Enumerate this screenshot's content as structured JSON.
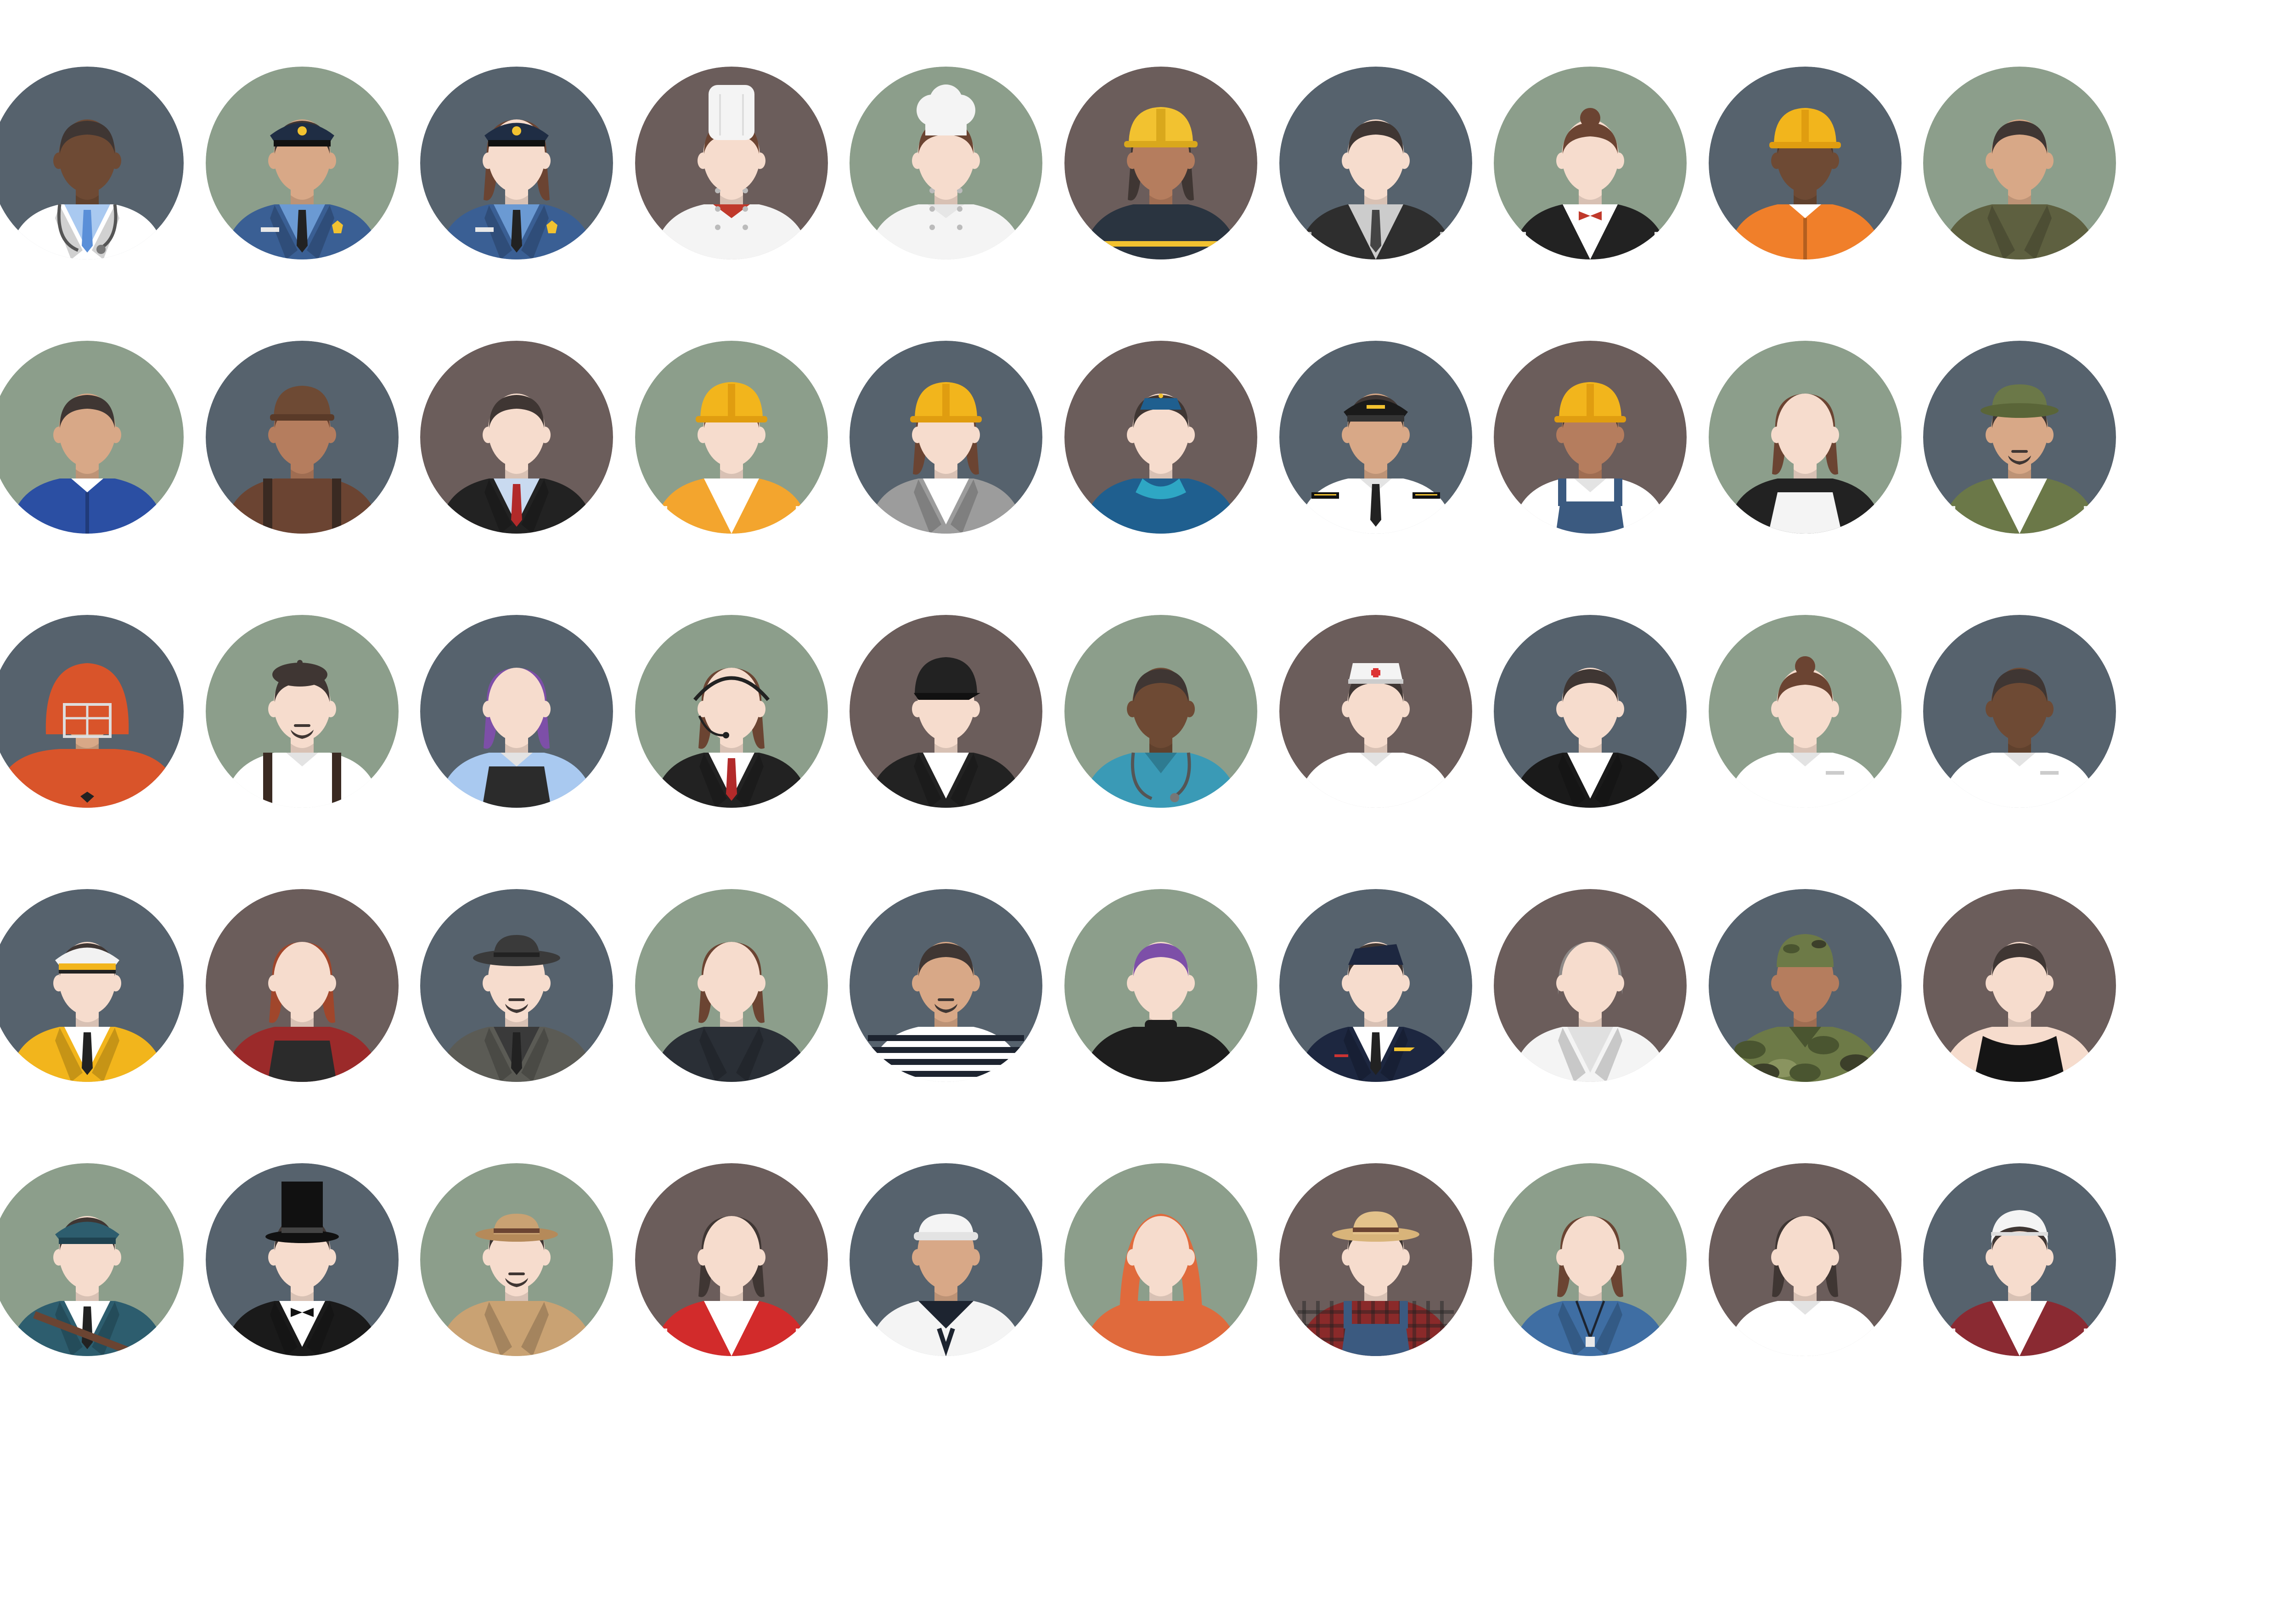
{
  "palette": {
    "slate": "#56626d",
    "sage": "#8c9e8b",
    "mauve": "#6b5d5b",
    "skin_light": "#f6dccd",
    "skin_tan": "#d8a887",
    "skin_mid": "#b57d5e",
    "skin_dark": "#6e4a34",
    "hair_dark": "#3f3633",
    "hair_brown": "#6b4432",
    "hair_auburn": "#a0462b",
    "hair_purple": "#7d4fa8",
    "hair_gray": "#8e8a88"
  },
  "avatars": [
    {
      "role": "doctor",
      "bg": "slate",
      "skin": "skin_dark",
      "hair": "short",
      "hair_color": "hair_dark",
      "hat": "none",
      "beard": false,
      "outfit": "coat",
      "outfit_color": "#ffffff",
      "inner_color": "#a9c9f0",
      "tie": "#5a8fd8",
      "accessory": "stethoscope"
    },
    {
      "role": "police-officer",
      "bg": "sage",
      "skin": "skin_tan",
      "hair": "short",
      "hair_color": "hair_dark",
      "hat": "police",
      "beard": false,
      "outfit": "uniform",
      "outfit_color": "#3a5f94",
      "inner_color": "#6b9ad3",
      "tie": "#222222",
      "accessory": "badge"
    },
    {
      "role": "policewoman",
      "bg": "slate",
      "skin": "skin_light",
      "hair": "long",
      "hair_color": "hair_brown",
      "hat": "police",
      "beard": false,
      "outfit": "uniform",
      "outfit_color": "#3a5f94",
      "inner_color": "#6b9ad3",
      "tie": "#222222",
      "accessory": "badge"
    },
    {
      "role": "chef",
      "bg": "mauve",
      "skin": "skin_light",
      "hair": "short",
      "hair_color": "hair_brown",
      "hat": "chef-tall",
      "beard": false,
      "outfit": "chef",
      "outfit_color": "#f4f4f4",
      "inner_color": "#c0392b",
      "tie": "none",
      "accessory": "none"
    },
    {
      "role": "female-chef",
      "bg": "sage",
      "skin": "skin_light",
      "hair": "short",
      "hair_color": "hair_brown",
      "hat": "chef-puff",
      "beard": false,
      "outfit": "chef",
      "outfit_color": "#f4f4f4",
      "inner_color": "#e6e6e6",
      "tie": "none",
      "accessory": "none"
    },
    {
      "role": "firefighter",
      "bg": "mauve",
      "skin": "skin_mid",
      "hair": "long",
      "hair_color": "hair_dark",
      "hat": "fire",
      "beard": false,
      "outfit": "plain",
      "outfit_color": "#2a3440",
      "inner_color": "#2a3440",
      "tie": "none",
      "accessory": "stripes"
    },
    {
      "role": "bartender",
      "bg": "slate",
      "skin": "skin_light",
      "hair": "short",
      "hair_color": "hair_dark",
      "hat": "none",
      "beard": false,
      "outfit": "vest",
      "outfit_color": "#2e2e2e",
      "inner_color": "#cccccc",
      "tie": "#444444",
      "accessory": "none"
    },
    {
      "role": "waitress",
      "bg": "sage",
      "skin": "skin_light",
      "hair": "bun",
      "hair_color": "hair_brown",
      "hat": "none",
      "beard": false,
      "outfit": "vest",
      "outfit_color": "#222222",
      "inner_color": "#ffffff",
      "tie": "bow-red",
      "accessory": "none"
    },
    {
      "role": "construction-worker",
      "bg": "slate",
      "skin": "skin_dark",
      "hair": "short",
      "hair_color": "hair_dark",
      "hat": "hard-yellow",
      "beard": false,
      "outfit": "coverall",
      "outfit_color": "#f07f2a",
      "inner_color": "#ffffff",
      "tie": "none",
      "accessory": "none"
    },
    {
      "role": "military-pilot",
      "bg": "sage",
      "skin": "skin_tan",
      "hair": "short",
      "hair_color": "hair_dark",
      "hat": "none",
      "beard": false,
      "outfit": "jacket",
      "outfit_color": "#5e6040",
      "inner_color": "#5e6040",
      "tie": "none",
      "accessory": "none"
    },
    {
      "role": "mechanic",
      "bg": "sage",
      "skin": "skin_tan",
      "hair": "short",
      "hair_color": "hair_dark",
      "hat": "none",
      "beard": false,
      "outfit": "coverall",
      "outfit_color": "#2b4fa3",
      "inner_color": "#ffffff",
      "tie": "none",
      "accessory": "none"
    },
    {
      "role": "lumberjack",
      "bg": "slate",
      "skin": "skin_mid",
      "hair": "short",
      "hair_color": "hair_brown",
      "hat": "cap-brown",
      "beard": false,
      "outfit": "plain",
      "outfit_color": "#6b4432",
      "inner_color": "#6b4432",
      "tie": "none",
      "accessory": "suspenders"
    },
    {
      "role": "businessman",
      "bg": "mauve",
      "skin": "skin_light",
      "hair": "short",
      "hair_color": "hair_dark",
      "hat": "none",
      "beard": false,
      "outfit": "suit",
      "outfit_color": "#222222",
      "inner_color": "#c9daf0",
      "tie": "#b22a2a",
      "accessory": "none"
    },
    {
      "role": "engineer",
      "bg": "sage",
      "skin": "skin_light",
      "hair": "short",
      "hair_color": "hair_brown",
      "hat": "hard-yellow",
      "beard": false,
      "outfit": "vest",
      "outfit_color": "#f3a52e",
      "inner_color": "#ffffff",
      "tie": "none",
      "accessory": "none"
    },
    {
      "role": "female-engineer",
      "bg": "slate",
      "skin": "skin_light",
      "hair": "long",
      "hair_color": "hair_brown",
      "hat": "hard-yellow",
      "beard": false,
      "outfit": "suit",
      "outfit_color": "#9c9c9c",
      "inner_color": "#ffffff",
      "tie": "none",
      "accessory": "none"
    },
    {
      "role": "flight-attendant",
      "bg": "mauve",
      "skin": "skin_light",
      "hair": "short",
      "hair_color": "hair_dark",
      "hat": "garrison-teal",
      "beard": false,
      "outfit": "plain",
      "outfit_color": "#1f5f8f",
      "inner_color": "#1f5f8f",
      "tie": "none",
      "accessory": "scarf"
    },
    {
      "role": "pilot",
      "bg": "slate",
      "skin": "skin_tan",
      "hair": "short",
      "hair_color": "hair_dark",
      "hat": "captain",
      "beard": false,
      "outfit": "shirt",
      "outfit_color": "#ffffff",
      "inner_color": "#ffffff",
      "tie": "#222222",
      "accessory": "epaulettes"
    },
    {
      "role": "farmer",
      "bg": "mauve",
      "skin": "skin_mid",
      "hair": "short",
      "hair_color": "hair_dark",
      "hat": "hard-yellow",
      "beard": false,
      "outfit": "shirt",
      "outfit_color": "#ffffff",
      "inner_color": "#ffffff",
      "tie": "none",
      "accessory": "overall-blue"
    },
    {
      "role": "housekeeper",
      "bg": "sage",
      "skin": "skin_light",
      "hair": "long",
      "hair_color": "hair_brown",
      "hat": "none",
      "beard": false,
      "outfit": "plain",
      "outfit_color": "#222222",
      "inner_color": "#222222",
      "tie": "none",
      "accessory": "apron-white"
    },
    {
      "role": "hunter",
      "bg": "slate",
      "skin": "skin_tan",
      "hair": "short",
      "hair_color": "hair_dark",
      "hat": "bucket-olive",
      "beard": true,
      "outfit": "vest",
      "outfit_color": "#6b7848",
      "inner_color": "#ffffff",
      "tie": "none",
      "accessory": "none"
    },
    {
      "role": "football-player",
      "bg": "slate",
      "skin": "skin_tan",
      "hair": "short",
      "hair_color": "hair_dark",
      "hat": "football",
      "beard": false,
      "outfit": "jersey",
      "outfit_color": "#d9542a",
      "inner_color": "#d9542a",
      "tie": "none",
      "accessory": "none"
    },
    {
      "role": "artist",
      "bg": "sage",
      "skin": "skin_light",
      "hair": "short",
      "hair_color": "hair_dark",
      "hat": "beret",
      "beard": true,
      "outfit": "shirt",
      "outfit_color": "#ffffff",
      "inner_color": "#ffffff",
      "tie": "none",
      "accessory": "suspenders"
    },
    {
      "role": "hipster-waitress",
      "bg": "slate",
      "skin": "skin_light",
      "hair": "long",
      "hair_color": "hair_purple",
      "hat": "none",
      "beard": false,
      "outfit": "shirt",
      "outfit_color": "#a9c9f0",
      "inner_color": "#a9c9f0",
      "tie": "none",
      "accessory": "apron-dark"
    },
    {
      "role": "call-center-agent",
      "bg": "sage",
      "skin": "skin_light",
      "hair": "long",
      "hair_color": "hair_brown",
      "hat": "none",
      "beard": false,
      "outfit": "suit",
      "outfit_color": "#222222",
      "inner_color": "#ffffff",
      "tie": "#b22a2a",
      "accessory": "headset"
    },
    {
      "role": "jockey",
      "bg": "mauve",
      "skin": "skin_light",
      "hair": "none",
      "hair_color": "hair_dark",
      "hat": "helmet-black",
      "beard": false,
      "outfit": "suit",
      "outfit_color": "#222222",
      "inner_color": "#ffffff",
      "tie": "none",
      "accessory": "none"
    },
    {
      "role": "nurse",
      "bg": "sage",
      "skin": "skin_dark",
      "hair": "short",
      "hair_color": "hair_dark",
      "hat": "none",
      "beard": false,
      "outfit": "scrubs",
      "outfit_color": "#3a9ab6",
      "inner_color": "#3a9ab6",
      "tie": "none",
      "accessory": "stethoscope"
    },
    {
      "role": "head-nurse",
      "bg": "mauve",
      "skin": "skin_light",
      "hair": "short",
      "hair_color": "hair_dark",
      "hat": "nurse",
      "beard": false,
      "outfit": "shirt",
      "outfit_color": "#ffffff",
      "inner_color": "#ffffff",
      "tie": "none",
      "accessory": "none"
    },
    {
      "role": "judge",
      "bg": "slate",
      "skin": "skin_light",
      "hair": "short",
      "hair_color": "hair_dark",
      "hat": "none",
      "beard": false,
      "outfit": "robe",
      "outfit_color": "#1a1a1a",
      "inner_color": "#ffffff",
      "tie": "none",
      "accessory": "none"
    },
    {
      "role": "pharmacist",
      "bg": "sage",
      "skin": "skin_light",
      "hair": "bun",
      "hair_color": "hair_brown",
      "hat": "none",
      "beard": false,
      "outfit": "shirt",
      "outfit_color": "#ffffff",
      "inner_color": "#ffffff",
      "tie": "none",
      "accessory": "pocket"
    },
    {
      "role": "dentist",
      "bg": "slate",
      "skin": "skin_dark",
      "hair": "short",
      "hair_color": "hair_dark",
      "hat": "none",
      "beard": false,
      "outfit": "shirt",
      "outfit_color": "#ffffff",
      "inner_color": "#ffffff",
      "tie": "none",
      "accessory": "pocket"
    },
    {
      "role": "chauffeur",
      "bg": "slate",
      "skin": "skin_light",
      "hair": "short",
      "hair_color": "hair_dark",
      "hat": "captain-yellow",
      "beard": false,
      "outfit": "suit",
      "outfit_color": "#f2b51c",
      "inner_color": "#ffffff",
      "tie": "#222222",
      "accessory": "none"
    },
    {
      "role": "barista",
      "bg": "mauve",
      "skin": "skin_light",
      "hair": "long",
      "hair_color": "hair_auburn",
      "hat": "none",
      "beard": false,
      "outfit": "plain",
      "outfit_color": "#9b2a2a",
      "inner_color": "#9b2a2a",
      "tie": "none",
      "accessory": "apron-dark"
    },
    {
      "role": "detective",
      "bg": "slate",
      "skin": "skin_light",
      "hair": "none",
      "hair_color": "hair_dark",
      "hat": "fedora",
      "beard": true,
      "outfit": "suit",
      "outfit_color": "#5b5b55",
      "inner_color": "#3a3a3a",
      "tie": "#222222",
      "accessory": "none"
    },
    {
      "role": "secretary",
      "bg": "sage",
      "skin": "skin_light",
      "hair": "long",
      "hair_color": "hair_brown",
      "hat": "none",
      "beard": false,
      "outfit": "suit",
      "outfit_color": "#2a2f36",
      "inner_color": "#2a2f36",
      "tie": "none",
      "accessory": "none"
    },
    {
      "role": "mime",
      "bg": "slate",
      "skin": "skin_tan",
      "hair": "short",
      "hair_color": "hair_dark",
      "hat": "none",
      "beard": true,
      "outfit": "stripes",
      "outfit_color": "#ffffff",
      "inner_color": "#1d2430",
      "tie": "none",
      "accessory": "none"
    },
    {
      "role": "hipster",
      "bg": "sage",
      "skin": "skin_light",
      "hair": "short",
      "hair_color": "hair_purple",
      "hat": "none",
      "beard": false,
      "outfit": "turtleneck",
      "outfit_color": "#1e1e1e",
      "inner_color": "#1e1e1e",
      "tie": "none",
      "accessory": "none"
    },
    {
      "role": "air-force-officer",
      "bg": "slate",
      "skin": "skin_light",
      "hair": "short",
      "hair_color": "hair_dark",
      "hat": "garrison-navy",
      "beard": false,
      "outfit": "suit",
      "outfit_color": "#1d2740",
      "inner_color": "#ffffff",
      "tie": "#222222",
      "accessory": "wings"
    },
    {
      "role": "scientist",
      "bg": "mauve",
      "skin": "skin_light",
      "hair": "bob",
      "hair_color": "hair_gray",
      "hat": "none",
      "beard": false,
      "outfit": "coat",
      "outfit_color": "#f4f4f4",
      "inner_color": "#e0e0e0",
      "tie": "none",
      "accessory": "none"
    },
    {
      "role": "soldier",
      "bg": "slate",
      "skin": "skin_mid",
      "hair": "none",
      "hair_color": "hair_dark",
      "hat": "camo",
      "beard": false,
      "outfit": "camo",
      "outfit_color": "#6d7a47",
      "inner_color": "#6d7a47",
      "tie": "none",
      "accessory": "none"
    },
    {
      "role": "bouncer",
      "bg": "mauve",
      "skin": "skin_light",
      "hair": "short",
      "hair_color": "hair_dark",
      "hat": "none",
      "beard": false,
      "outfit": "tank",
      "outfit_color": "#151515",
      "inner_color": "#151515",
      "tie": "none",
      "accessory": "none"
    },
    {
      "role": "postman",
      "bg": "sage",
      "skin": "skin_light",
      "hair": "short",
      "hair_color": "hair_dark",
      "hat": "postal",
      "beard": false,
      "outfit": "suit",
      "outfit_color": "#2d5d6e",
      "inner_color": "#ffffff",
      "tie": "#222222",
      "accessory": "strap"
    },
    {
      "role": "magician",
      "bg": "slate",
      "skin": "skin_light",
      "hair": "short",
      "hair_color": "hair_dark",
      "hat": "top-hat",
      "beard": false,
      "outfit": "suit",
      "outfit_color": "#1a1a1a",
      "inner_color": "#ffffff",
      "tie": "bow-black",
      "accessory": "none"
    },
    {
      "role": "explorer",
      "bg": "sage",
      "skin": "skin_light",
      "hair": "short",
      "hair_color": "hair_dark",
      "hat": "safari",
      "beard": true,
      "outfit": "jacket",
      "outfit_color": "#c9a273",
      "inner_color": "#c9a273",
      "tie": "none",
      "accessory": "none"
    },
    {
      "role": "cashier",
      "bg": "mauve",
      "skin": "skin_light",
      "hair": "long",
      "hair_color": "hair_dark",
      "hat": "none",
      "beard": false,
      "outfit": "vest",
      "outfit_color": "#d22b2b",
      "inner_color": "#ffffff",
      "tie": "none",
      "accessory": "none"
    },
    {
      "role": "sailor",
      "bg": "slate",
      "skin": "skin_tan",
      "hair": "none",
      "hair_color": "hair_dark",
      "hat": "sailor",
      "beard": false,
      "outfit": "sailor",
      "outfit_color": "#f4f4f4",
      "inner_color": "#f4f4f4",
      "tie": "#1d2430",
      "accessory": "none"
    },
    {
      "role": "woman-in-hijab",
      "bg": "sage",
      "skin": "skin_light",
      "hair": "none",
      "hair_color": "hair_dark",
      "hat": "hijab",
      "beard": false,
      "outfit": "plain",
      "outfit_color": "#e06a3c",
      "inner_color": "#e06a3c",
      "tie": "none",
      "accessory": "none"
    },
    {
      "role": "rancher",
      "bg": "mauve",
      "skin": "skin_light",
      "hair": "short",
      "hair_color": "hair_dark",
      "hat": "straw",
      "beard": false,
      "outfit": "plaid",
      "outfit_color": "#8a2a2a",
      "inner_color": "#8a2a2a",
      "tie": "none",
      "accessory": "overall-blue"
    },
    {
      "role": "teacher",
      "bg": "sage",
      "skin": "skin_light",
      "hair": "long",
      "hair_color": "hair_brown",
      "hat": "none",
      "beard": false,
      "outfit": "suit",
      "outfit_color": "#3f6ea3",
      "inner_color": "#3f6ea3",
      "tie": "none",
      "accessory": "lanyard"
    },
    {
      "role": "receptionist",
      "bg": "mauve",
      "skin": "skin_light",
      "hair": "long",
      "hair_color": "hair_dark",
      "hat": "none",
      "beard": false,
      "outfit": "shirt",
      "outfit_color": "#ffffff",
      "inner_color": "#ffffff",
      "tie": "none",
      "accessory": "none"
    },
    {
      "role": "injured-worker",
      "bg": "slate",
      "skin": "skin_light",
      "hair": "short",
      "hair_color": "hair_dark",
      "hat": "bandage",
      "beard": false,
      "outfit": "vest",
      "outfit_color": "#8a2a32",
      "inner_color": "#ffffff",
      "tie": "none",
      "accessory": "none"
    }
  ]
}
